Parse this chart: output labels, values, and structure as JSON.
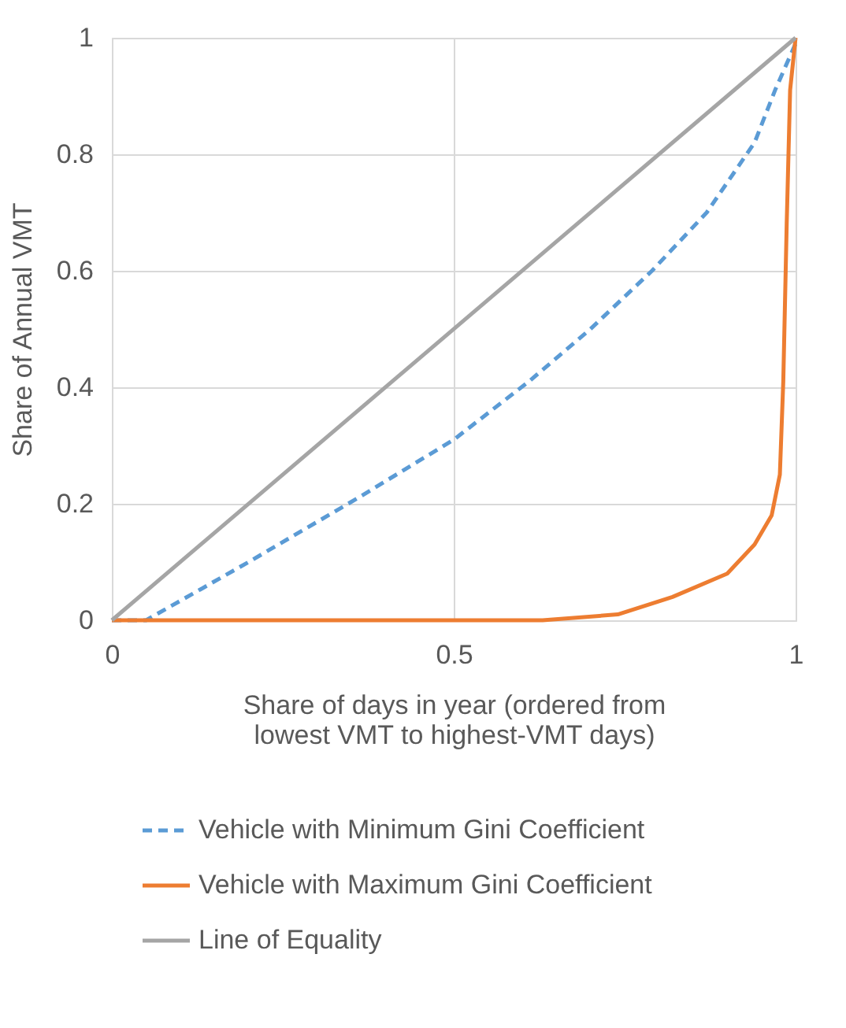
{
  "chart_data": {
    "type": "line",
    "xlabel": "Share of days in year (ordered  from\nlowest VMT to highest-VMT  days)",
    "ylabel": "Share of Annual VMT",
    "xlim": [
      0,
      1
    ],
    "xticks": [
      0,
      0.5,
      1
    ],
    "ylim": [
      0,
      1
    ],
    "yticks": [
      0,
      0.2,
      0.4,
      0.6,
      0.8,
      1
    ],
    "grid": true,
    "legend": "bottom",
    "marker": "none",
    "series": [
      {
        "name": "Vehicle with Minimum Gini Coefficient",
        "color": "#5b9bd5",
        "line_style": "dashed",
        "x": [
          0,
          0.05,
          0.2,
          0.36,
          0.5,
          0.61,
          0.7,
          0.79,
          0.87,
          0.94,
          0.97,
          1
        ],
        "values": [
          0,
          0,
          0.1,
          0.21,
          0.31,
          0.41,
          0.5,
          0.6,
          0.7,
          0.82,
          0.91,
          0.99
        ]
      },
      {
        "name": "Vehicle with Maximum Gini Coefficient",
        "color": "#ed7d31",
        "line_style": "solid",
        "x": [
          0,
          0.63,
          0.74,
          0.82,
          0.9,
          0.94,
          0.965,
          0.977,
          0.982,
          0.987,
          0.992,
          1
        ],
        "values": [
          0,
          0,
          0.01,
          0.04,
          0.08,
          0.13,
          0.18,
          0.25,
          0.41,
          0.68,
          0.91,
          1
        ]
      },
      {
        "name": "Line of Equality",
        "color": "#a5a5a5",
        "line_style": "solid",
        "x": [
          0,
          1
        ],
        "values": [
          0,
          1
        ]
      }
    ]
  }
}
